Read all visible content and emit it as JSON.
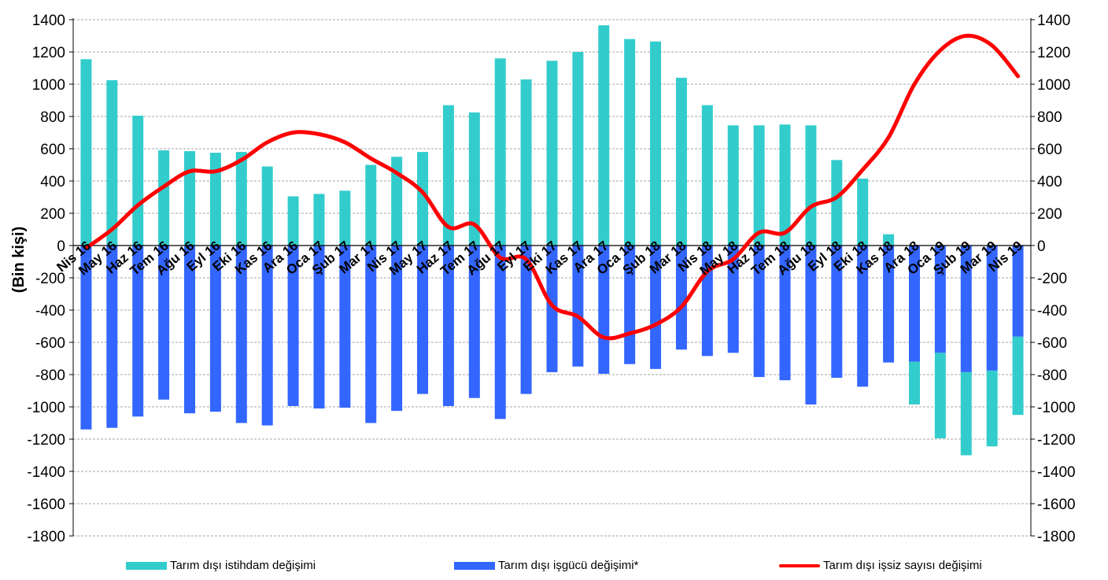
{
  "chart_data": {
    "type": "bar",
    "ylabel": "(Bin kişi)",
    "ylim": [
      -1800,
      1400
    ],
    "yticks": [
      1400,
      1200,
      1000,
      800,
      600,
      400,
      200,
      0,
      -200,
      -400,
      -600,
      -800,
      -1000,
      -1200,
      -1400,
      -1600,
      -1800
    ],
    "grid": true,
    "legend_position": "bottom",
    "categories": [
      "Nis 16",
      "May 16",
      "Haz 16",
      "Tem 16",
      "Ağu 16",
      "Eyl 16",
      "Eki 16",
      "Kas 16",
      "Ara 16",
      "Oca 17",
      "Şub 17",
      "Mar 17",
      "Nis 17",
      "May 17",
      "Haz 17",
      "Tem 17",
      "Ağu 17",
      "Eyl 17",
      "Eki 17",
      "Kas 17",
      "Ara 17",
      "Oca 18",
      "Şub 18",
      "Mar 18",
      "Nis 18",
      "May 18",
      "Haz 18",
      "Tem 18",
      "Ağu 18",
      "Eyl 18",
      "Eki 18",
      "Kas 18",
      "Ara 18",
      "Oca 19",
      "Şub 19",
      "Mar 19",
      "Nis 19"
    ],
    "series": [
      {
        "name": "Tarım dışı istihdam değişimi",
        "kind": "bar",
        "color": "#33CCCC",
        "values": [
          1155,
          1025,
          805,
          590,
          585,
          575,
          580,
          490,
          305,
          320,
          340,
          500,
          550,
          580,
          870,
          825,
          1160,
          1030,
          1145,
          1200,
          1365,
          1280,
          1265,
          1040,
          870,
          745,
          745,
          750,
          745,
          530,
          415,
          70,
          -985,
          -1195,
          -1300,
          -1245,
          -1050
        ]
      },
      {
        "name": "Tarım dışı işgücü değişimi*",
        "kind": "bar",
        "color": "#3366FF",
        "values": [
          -1140,
          -1130,
          -1060,
          -955,
          -1040,
          -1030,
          -1100,
          -1115,
          -995,
          -1010,
          -1005,
          -1100,
          -1025,
          -920,
          -995,
          -945,
          -1075,
          -920,
          -785,
          -750,
          -795,
          -735,
          -765,
          -645,
          -685,
          -665,
          -815,
          -835,
          -985,
          -820,
          -875,
          -725,
          -720,
          -665,
          -785,
          -775,
          -565
        ]
      },
      {
        "name": "Tarım dışı işsiz sayısı değişimi",
        "kind": "line",
        "color": "#FF0000",
        "values": [
          -15,
          100,
          250,
          365,
          460,
          460,
          530,
          640,
          700,
          690,
          640,
          540,
          450,
          330,
          115,
          130,
          -75,
          -85,
          -370,
          -440,
          -570,
          -545,
          -490,
          -380,
          -160,
          -85,
          80,
          80,
          240,
          300,
          470,
          670,
          1000,
          1210,
          1300,
          1240,
          1050
        ]
      }
    ]
  }
}
